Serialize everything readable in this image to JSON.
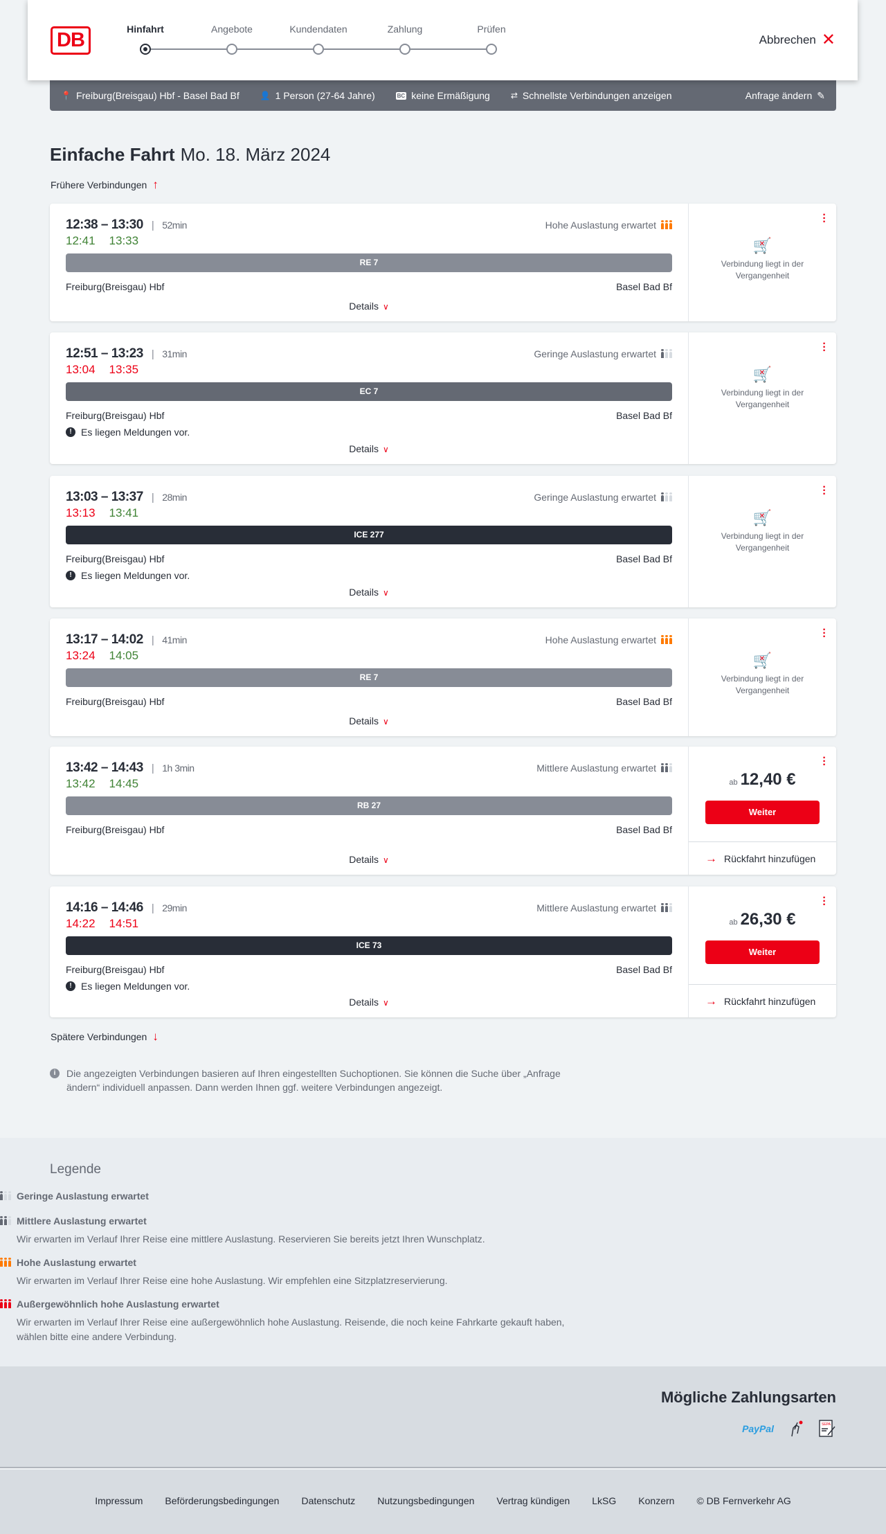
{
  "header": {
    "logo": "DB",
    "steps": [
      {
        "label": "Hinfahrt",
        "active": true
      },
      {
        "label": "Angebote",
        "active": false
      },
      {
        "label": "Kundendaten",
        "active": false
      },
      {
        "label": "Zahlung",
        "active": false
      },
      {
        "label": "Prüfen",
        "active": false
      }
    ],
    "cancel_label": "Abbrechen"
  },
  "search_bar": {
    "route": "Freiburg(Breisgau) Hbf - Basel Bad Bf",
    "passengers": "1 Person (27-64 Jahre)",
    "discount_badge": "BC",
    "discount": "keine Ermäßigung",
    "fastest": "Schnellste Verbindungen anzeigen",
    "edit_label": "Anfrage ändern"
  },
  "page": {
    "title": "Einfache Fahrt",
    "date": "Mo. 18. März 2024",
    "earlier": "Frühere Verbindungen",
    "later": "Spätere Verbindungen",
    "note": "Die angezeigten Verbindungen basieren auf Ihren eingestellten Suchoptionen. Sie können die Suche über „Anfrage ändern“ individuell anpassen. Dann werden Ihnen ggf. weitere Verbindungen angezeigt.",
    "details_label": "Details",
    "past_text": "Verbindung liegt in der Vergangenheit",
    "price_prefix": "ab",
    "continue_label": "Weiter",
    "return_label": "Rückfahrt hinzufügen",
    "message_text": "Es liegen Meldungen vor."
  },
  "colors": {
    "accent": "#ec0016",
    "on_time": "#408335",
    "delay": "#ec0016",
    "high_occupancy": "#ff7a00"
  },
  "connections": [
    {
      "times": "12:38 – 13:30",
      "duration": "52min",
      "rt_dep": "12:41",
      "rt_arr": "13:33",
      "rt_dep_status": "ok",
      "rt_arr_status": "ok",
      "occupancy": "Hohe Auslastung erwartet",
      "occupancy_level": "high",
      "train": "RE 7",
      "train_color": "#878c96",
      "from": "Freiburg(Breisgau) Hbf",
      "to": "Basel Bad Bf",
      "message": false,
      "price": null
    },
    {
      "times": "12:51 – 13:23",
      "duration": "31min",
      "rt_dep": "13:04",
      "rt_arr": "13:35",
      "rt_dep_status": "late",
      "rt_arr_status": "late",
      "occupancy": "Geringe Auslastung erwartet",
      "occupancy_level": "low",
      "train": "EC 7",
      "train_color": "#646973",
      "from": "Freiburg(Breisgau) Hbf",
      "to": "Basel Bad Bf",
      "message": true,
      "price": null
    },
    {
      "times": "13:03 – 13:37",
      "duration": "28min",
      "rt_dep": "13:13",
      "rt_arr": "13:41",
      "rt_dep_status": "late",
      "rt_arr_status": "ok",
      "occupancy": "Geringe Auslastung erwartet",
      "occupancy_level": "low",
      "train": "ICE 277",
      "train_color": "#282d37",
      "from": "Freiburg(Breisgau) Hbf",
      "to": "Basel Bad Bf",
      "message": true,
      "price": null
    },
    {
      "times": "13:17 – 14:02",
      "duration": "41min",
      "rt_dep": "13:24",
      "rt_arr": "14:05",
      "rt_dep_status": "late",
      "rt_arr_status": "ok",
      "occupancy": "Hohe Auslastung erwartet",
      "occupancy_level": "high",
      "train": "RE 7",
      "train_color": "#878c96",
      "from": "Freiburg(Breisgau) Hbf",
      "to": "Basel Bad Bf",
      "message": false,
      "price": null
    },
    {
      "times": "13:42 – 14:43",
      "duration": "1h 3min",
      "rt_dep": "13:42",
      "rt_arr": "14:45",
      "rt_dep_status": "ok",
      "rt_arr_status": "ok",
      "occupancy": "Mittlere Auslastung erwartet",
      "occupancy_level": "medium",
      "train": "RB 27",
      "train_color": "#878c96",
      "from": "Freiburg(Breisgau) Hbf",
      "to": "Basel Bad Bf",
      "message": false,
      "price": "12,40 €"
    },
    {
      "times": "14:16 – 14:46",
      "duration": "29min",
      "rt_dep": "14:22",
      "rt_arr": "14:51",
      "rt_dep_status": "late",
      "rt_arr_status": "late",
      "occupancy": "Mittlere Auslastung erwartet",
      "occupancy_level": "medium",
      "train": "ICE 73",
      "train_color": "#282d37",
      "from": "Freiburg(Breisgau) Hbf",
      "to": "Basel Bad Bf",
      "message": true,
      "price": "26,30 €"
    }
  ],
  "legend": {
    "title": "Legende",
    "items": [
      {
        "level": "low",
        "title": "Geringe Auslastung erwartet",
        "text": ""
      },
      {
        "level": "medium",
        "title": "Mittlere Auslastung erwartet",
        "text": "Wir erwarten im Verlauf Ihrer Reise eine mittlere Auslastung. Reservieren Sie bereits jetzt Ihren Wunschplatz."
      },
      {
        "level": "high",
        "title": "Hohe Auslastung erwartet",
        "text": "Wir erwarten im Verlauf Ihrer Reise eine hohe Auslastung. Wir empfehlen eine Sitzplatzreservierung."
      },
      {
        "level": "vhigh",
        "title": "Außergewöhnlich hohe Auslastung erwartet",
        "text": "Wir erwarten im Verlauf Ihrer Reise eine außergewöhnlich hohe Auslastung. Reisende, die noch keine Fahrkarte gekauft haben, wählen bitte eine andere Verbindung."
      }
    ]
  },
  "payment": {
    "title": "Mögliche Zahlungsarten",
    "methods": [
      "paypal-icon",
      "credit-card-touch-icon",
      "sepa-icon"
    ],
    "paypal_label": "PayPal",
    "sepa_label": "SEPA"
  },
  "footer": {
    "links": [
      "Impressum",
      "Beförderungsbedingungen",
      "Datenschutz",
      "Nutzungsbedingungen",
      "Vertrag kündigen",
      "LkSG",
      "Konzern",
      "© DB Fernverkehr AG"
    ]
  }
}
